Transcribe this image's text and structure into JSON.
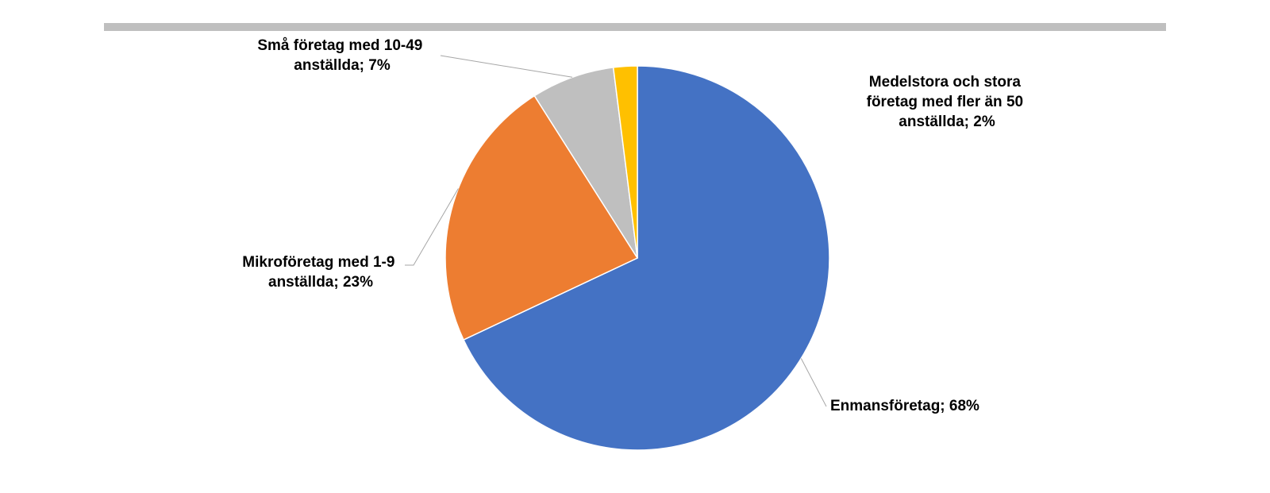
{
  "chart_data": {
    "type": "pie",
    "title": "",
    "slices": [
      {
        "label": "Enmansföretag",
        "value": 68,
        "value_text": "68%",
        "color": "#4472C4"
      },
      {
        "label": "Mikroföretag med 1-9 anställda",
        "value": 23,
        "value_text": "23%",
        "color": "#ED7D31"
      },
      {
        "label": "Små företag med 10-49 anställda",
        "value": 7,
        "value_text": "7%",
        "color": "#BFBFBF"
      },
      {
        "label": "Medelstora och stora företag med fler än 50 anställda",
        "value": 2,
        "value_text": "2%",
        "color": "#FFC000"
      }
    ],
    "data_labels": [
      {
        "lines": [
          "Enmansföretag; 68%"
        ]
      },
      {
        "lines": [
          "Mikroföretag med 1-9",
          "anställda; 23%"
        ]
      },
      {
        "lines": [
          "Små företag med 10-49",
          "anställda; 7%"
        ]
      },
      {
        "lines": [
          "Medelstora och stora",
          "företag med fler än 50",
          "anställda; 2%"
        ]
      }
    ],
    "legend": "none",
    "header_bar_color": "#BFBFBF"
  }
}
